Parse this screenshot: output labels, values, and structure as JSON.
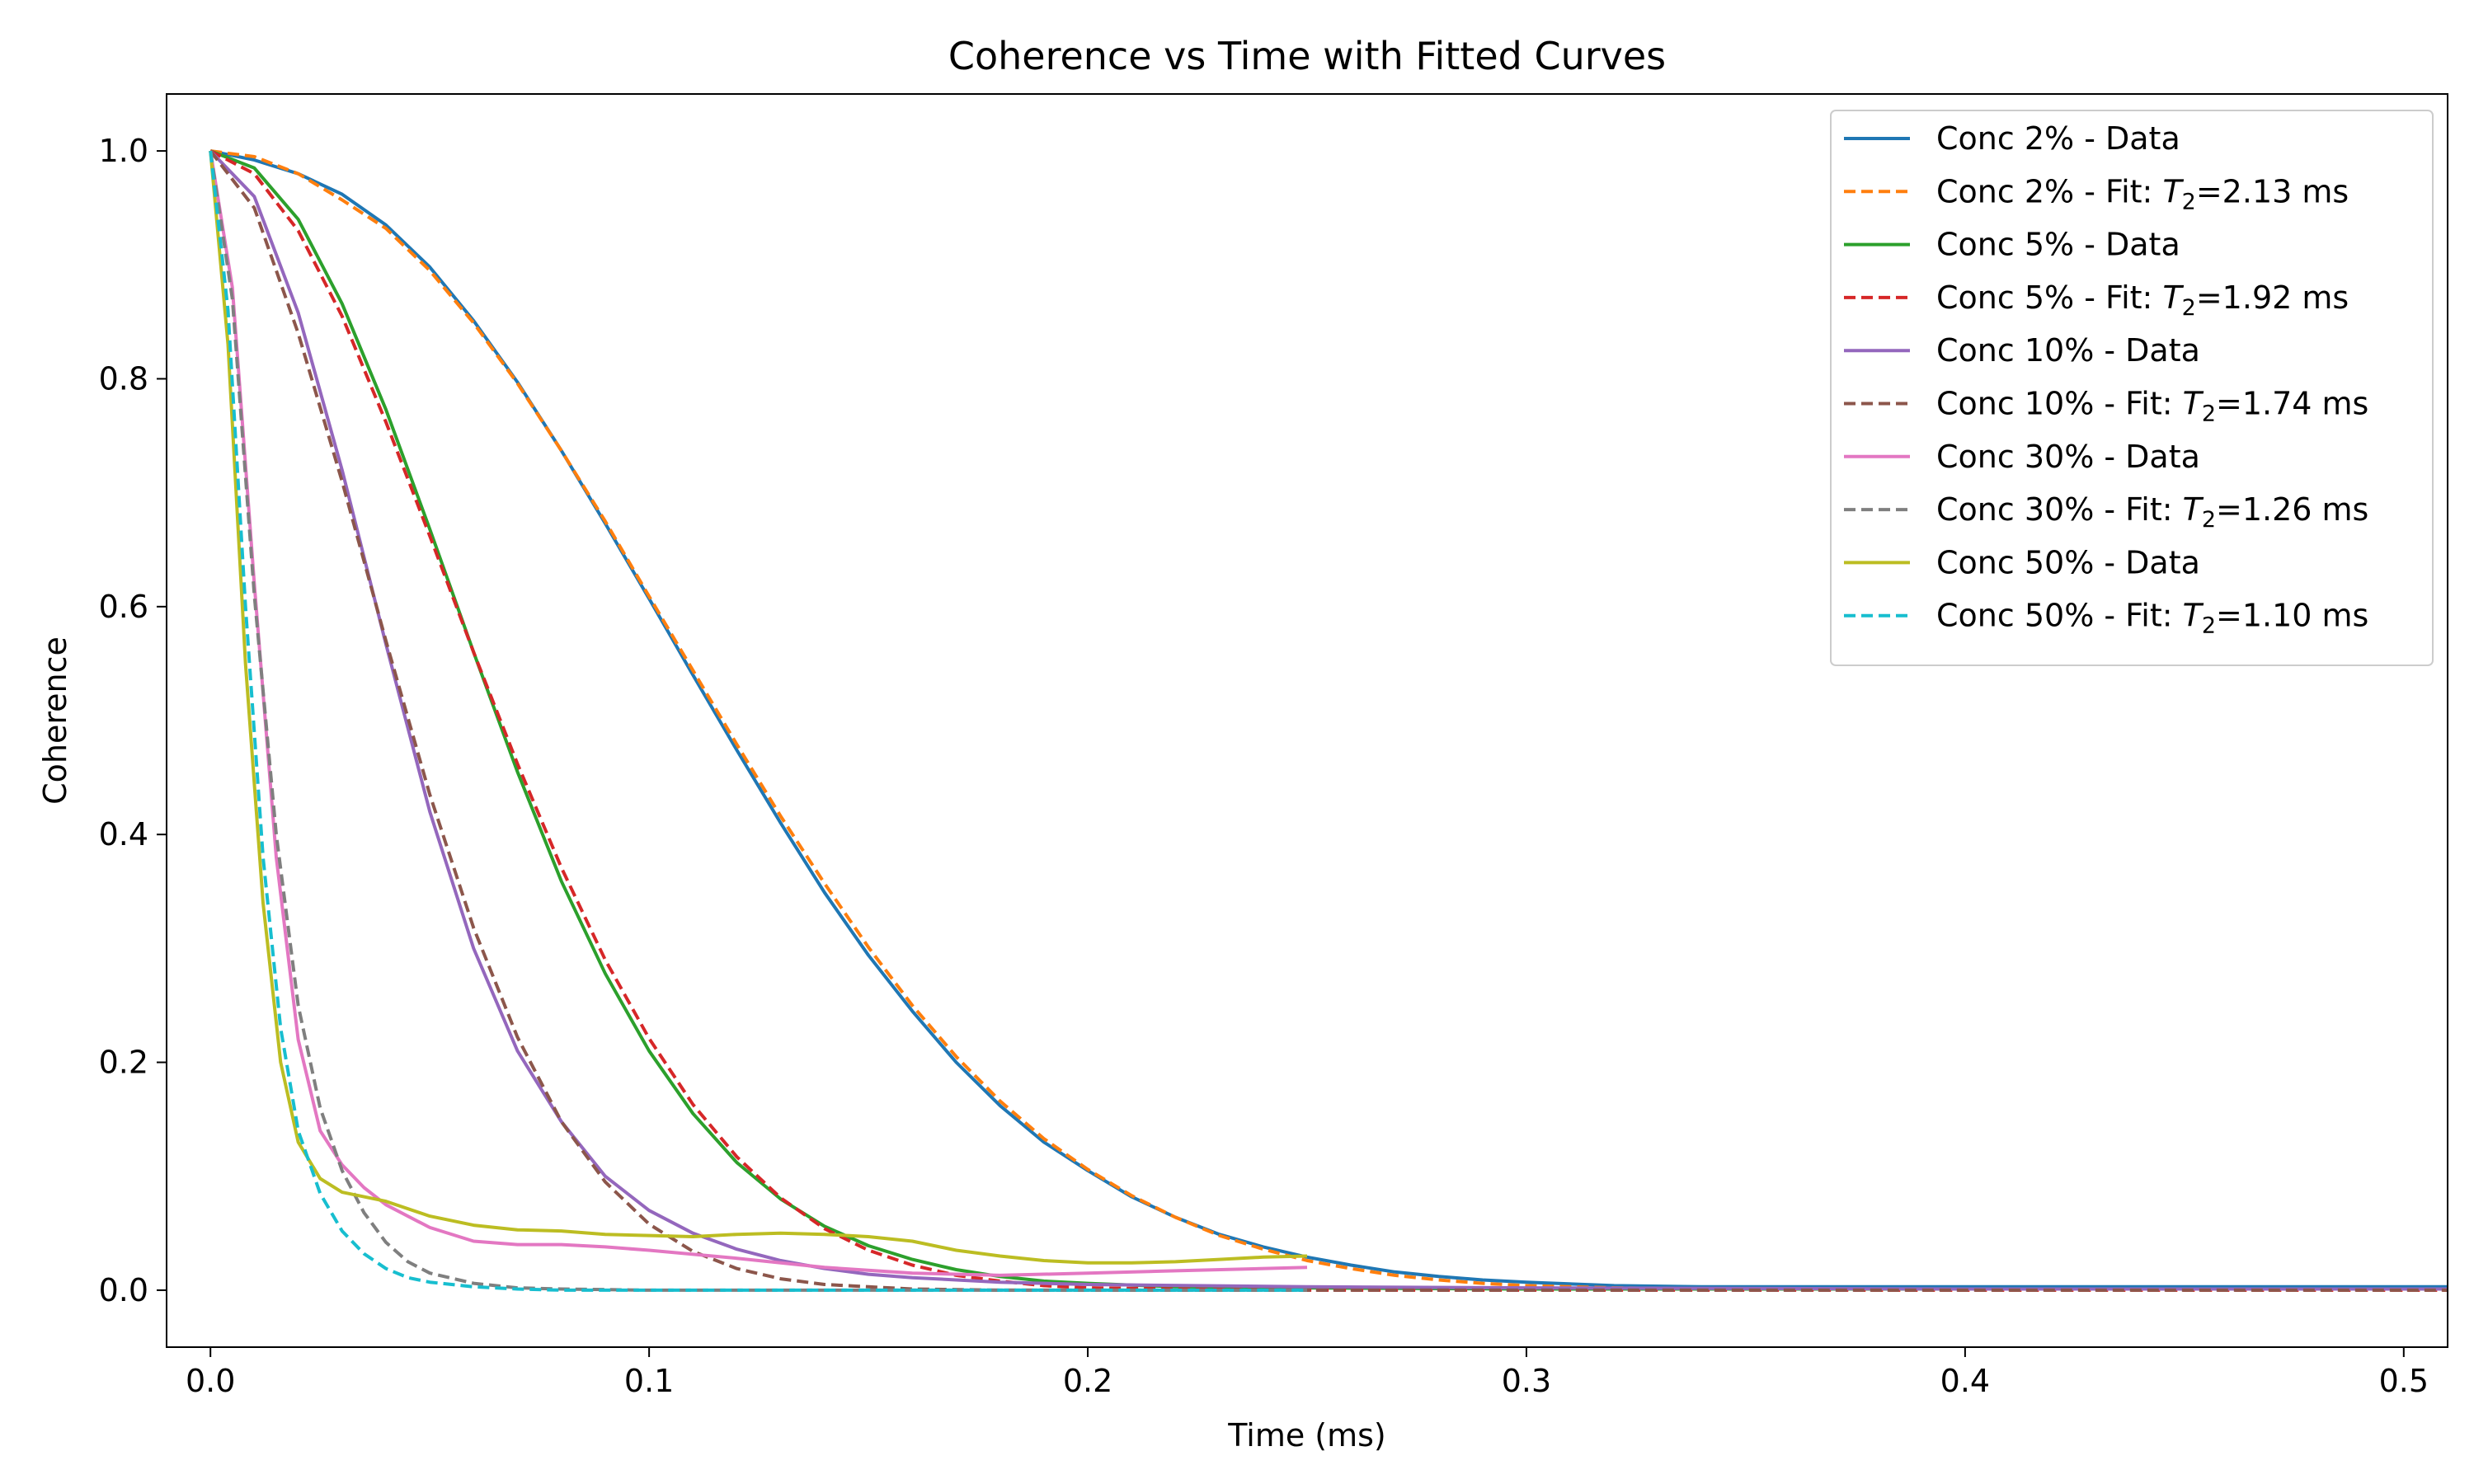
{
  "chart_data": {
    "type": "line",
    "title": "Coherence vs Time with Fitted Curves",
    "xlabel": "Time (ms)",
    "ylabel": "Coherence",
    "xlim": [
      -0.01,
      0.51
    ],
    "ylim": [
      -0.05,
      1.05
    ],
    "xticks": [
      0.0,
      0.1,
      0.2,
      0.3,
      0.4,
      0.5
    ],
    "xtick_labels": [
      "0.0",
      "0.1",
      "0.2",
      "0.3",
      "0.4",
      "0.5"
    ],
    "yticks": [
      0.0,
      0.2,
      0.4,
      0.6,
      0.8,
      1.0
    ],
    "ytick_labels": [
      "0.0",
      "0.2",
      "0.4",
      "0.6",
      "0.8",
      "1.0"
    ],
    "grid": false,
    "legend_position": "top-right",
    "series": [
      {
        "name": "Conc 2% - Data",
        "legend_parts": [
          "Conc 2% - Data"
        ],
        "color": "#1f77b4",
        "dash": false,
        "x": [
          0.0,
          0.01,
          0.02,
          0.03,
          0.04,
          0.05,
          0.06,
          0.07,
          0.08,
          0.09,
          0.1,
          0.11,
          0.12,
          0.13,
          0.14,
          0.15,
          0.16,
          0.17,
          0.18,
          0.19,
          0.2,
          0.21,
          0.22,
          0.23,
          0.24,
          0.25,
          0.26,
          0.27,
          0.28,
          0.29,
          0.3,
          0.32,
          0.34,
          0.36,
          0.38,
          0.4,
          0.45,
          0.51
        ],
        "y": [
          1.0,
          0.992,
          0.98,
          0.962,
          0.935,
          0.898,
          0.851,
          0.797,
          0.737,
          0.673,
          0.607,
          0.54,
          0.474,
          0.41,
          0.349,
          0.294,
          0.245,
          0.2,
          0.162,
          0.13,
          0.105,
          0.082,
          0.064,
          0.049,
          0.038,
          0.029,
          0.022,
          0.016,
          0.012,
          0.009,
          0.007,
          0.004,
          0.003,
          0.003,
          0.003,
          0.003,
          0.003,
          0.003
        ]
      },
      {
        "name": "Conc 2% - Fit: T2=2.13 ms",
        "legend_parts": [
          "Conc 2% - Fit: ",
          "T",
          "2",
          "=2.13 ms"
        ],
        "color": "#ff7f0e",
        "dash": true,
        "x": [
          0.0,
          0.01,
          0.02,
          0.03,
          0.04,
          0.05,
          0.06,
          0.07,
          0.08,
          0.09,
          0.1,
          0.11,
          0.12,
          0.13,
          0.14,
          0.15,
          0.16,
          0.17,
          0.18,
          0.19,
          0.2,
          0.21,
          0.22,
          0.23,
          0.24,
          0.25,
          0.26,
          0.27,
          0.28,
          0.29,
          0.3,
          0.32,
          0.34,
          0.36,
          0.38,
          0.4,
          0.45,
          0.51
        ],
        "y": [
          1.0,
          0.995,
          0.98,
          0.957,
          0.932,
          0.895,
          0.849,
          0.796,
          0.737,
          0.675,
          0.609,
          0.544,
          0.479,
          0.416,
          0.357,
          0.301,
          0.25,
          0.205,
          0.166,
          0.133,
          0.106,
          0.083,
          0.064,
          0.048,
          0.036,
          0.026,
          0.019,
          0.013,
          0.009,
          0.006,
          0.004,
          0.002,
          0.001,
          0.001,
          0.0,
          0.0,
          0.0,
          0.0
        ]
      },
      {
        "name": "Conc 5% - Data",
        "legend_parts": [
          "Conc 5% - Data"
        ],
        "color": "#2ca02c",
        "dash": false,
        "x": [
          0.0,
          0.01,
          0.02,
          0.03,
          0.04,
          0.05,
          0.06,
          0.07,
          0.08,
          0.09,
          0.1,
          0.11,
          0.12,
          0.13,
          0.14,
          0.15,
          0.16,
          0.17,
          0.18,
          0.19,
          0.2,
          0.22,
          0.25,
          0.3,
          0.4,
          0.51
        ],
        "y": [
          1.0,
          0.985,
          0.94,
          0.866,
          0.773,
          0.668,
          0.56,
          0.455,
          0.359,
          0.278,
          0.21,
          0.155,
          0.112,
          0.08,
          0.056,
          0.039,
          0.027,
          0.018,
          0.012,
          0.008,
          0.006,
          0.003,
          0.002,
          0.001,
          0.001,
          0.001
        ]
      },
      {
        "name": "Conc 5% - Fit: T2=1.92 ms",
        "legend_parts": [
          "Conc 5% - Fit: ",
          "T",
          "2",
          "=1.92 ms"
        ],
        "color": "#d62728",
        "dash": true,
        "x": [
          0.0,
          0.01,
          0.02,
          0.03,
          0.04,
          0.05,
          0.06,
          0.07,
          0.08,
          0.09,
          0.1,
          0.11,
          0.12,
          0.13,
          0.14,
          0.15,
          0.16,
          0.17,
          0.18,
          0.19,
          0.2,
          0.22,
          0.25,
          0.3,
          0.4,
          0.51
        ],
        "y": [
          1.0,
          0.98,
          0.93,
          0.855,
          0.762,
          0.662,
          0.56,
          0.462,
          0.371,
          0.29,
          0.221,
          0.163,
          0.117,
          0.081,
          0.054,
          0.035,
          0.022,
          0.013,
          0.008,
          0.004,
          0.002,
          0.001,
          0.0,
          0.0,
          0.0,
          0.0
        ]
      },
      {
        "name": "Conc 10% - Data",
        "legend_parts": [
          "Conc 10% - Data"
        ],
        "color": "#9467bd",
        "dash": false,
        "x": [
          0.0,
          0.01,
          0.02,
          0.03,
          0.04,
          0.05,
          0.06,
          0.07,
          0.08,
          0.09,
          0.1,
          0.11,
          0.12,
          0.13,
          0.14,
          0.15,
          0.16,
          0.18,
          0.2,
          0.25,
          0.3,
          0.4,
          0.51
        ],
        "y": [
          1.0,
          0.96,
          0.858,
          0.72,
          0.567,
          0.42,
          0.3,
          0.21,
          0.148,
          0.1,
          0.07,
          0.05,
          0.036,
          0.026,
          0.019,
          0.014,
          0.011,
          0.007,
          0.005,
          0.003,
          0.002,
          0.001,
          0.001
        ]
      },
      {
        "name": "Conc 10% - Fit: T2=1.74 ms",
        "legend_parts": [
          "Conc 10% - Fit: ",
          "T",
          "2",
          "=1.74 ms"
        ],
        "color": "#8c564b",
        "dash": true,
        "x": [
          0.0,
          0.01,
          0.02,
          0.03,
          0.04,
          0.05,
          0.06,
          0.07,
          0.08,
          0.09,
          0.1,
          0.11,
          0.12,
          0.13,
          0.14,
          0.15,
          0.16,
          0.18,
          0.2,
          0.25,
          0.3,
          0.4,
          0.51
        ],
        "y": [
          1.0,
          0.95,
          0.84,
          0.71,
          0.57,
          0.435,
          0.318,
          0.222,
          0.148,
          0.095,
          0.058,
          0.034,
          0.019,
          0.01,
          0.005,
          0.003,
          0.001,
          0.0,
          0.0,
          0.0,
          0.0,
          0.0,
          0.0
        ]
      },
      {
        "name": "Conc 30% - Data",
        "legend_parts": [
          "Conc 30% - Data"
        ],
        "color": "#e377c2",
        "dash": false,
        "x": [
          0.0,
          0.005,
          0.01,
          0.015,
          0.02,
          0.025,
          0.03,
          0.035,
          0.04,
          0.05,
          0.06,
          0.07,
          0.08,
          0.09,
          0.1,
          0.12,
          0.14,
          0.16,
          0.18,
          0.2,
          0.22,
          0.25
        ],
        "y": [
          1.0,
          0.88,
          0.62,
          0.38,
          0.22,
          0.14,
          0.11,
          0.09,
          0.075,
          0.055,
          0.043,
          0.04,
          0.04,
          0.038,
          0.035,
          0.028,
          0.02,
          0.015,
          0.013,
          0.015,
          0.017,
          0.02
        ]
      },
      {
        "name": "Conc 30% - Fit: T2=1.26 ms",
        "legend_parts": [
          "Conc 30% - Fit: ",
          "T",
          "2",
          "=1.26 ms"
        ],
        "color": "#7f7f7f",
        "dash": true,
        "x": [
          0.0,
          0.005,
          0.01,
          0.015,
          0.02,
          0.025,
          0.03,
          0.035,
          0.04,
          0.045,
          0.05,
          0.06,
          0.07,
          0.08,
          0.1,
          0.15,
          0.2,
          0.25
        ],
        "y": [
          1.0,
          0.87,
          0.61,
          0.4,
          0.25,
          0.16,
          0.105,
          0.068,
          0.042,
          0.025,
          0.015,
          0.006,
          0.002,
          0.001,
          0.0,
          0.0,
          0.0,
          0.0
        ]
      },
      {
        "name": "Conc 50% - Data",
        "legend_parts": [
          "Conc 50% - Data"
        ],
        "color": "#bcbd22",
        "dash": false,
        "x": [
          0.0,
          0.004,
          0.008,
          0.012,
          0.016,
          0.02,
          0.025,
          0.03,
          0.04,
          0.05,
          0.06,
          0.07,
          0.08,
          0.09,
          0.1,
          0.11,
          0.12,
          0.13,
          0.14,
          0.15,
          0.16,
          0.17,
          0.18,
          0.19,
          0.2,
          0.21,
          0.22,
          0.23,
          0.24,
          0.25
        ],
        "y": [
          1.0,
          0.83,
          0.55,
          0.34,
          0.2,
          0.13,
          0.098,
          0.086,
          0.078,
          0.065,
          0.057,
          0.053,
          0.052,
          0.049,
          0.048,
          0.047,
          0.049,
          0.05,
          0.049,
          0.047,
          0.043,
          0.035,
          0.03,
          0.026,
          0.024,
          0.024,
          0.025,
          0.027,
          0.029,
          0.03
        ]
      },
      {
        "name": "Conc 50% - Fit: T2=1.10 ms",
        "legend_parts": [
          "Conc 50% - Fit: ",
          "T",
          "2",
          "=1.10 ms"
        ],
        "color": "#17becf",
        "dash": true,
        "x": [
          0.0,
          0.004,
          0.008,
          0.012,
          0.016,
          0.02,
          0.025,
          0.03,
          0.035,
          0.04,
          0.045,
          0.05,
          0.06,
          0.07,
          0.08,
          0.1,
          0.15,
          0.2,
          0.25
        ],
        "y": [
          1.0,
          0.86,
          0.6,
          0.38,
          0.23,
          0.14,
          0.085,
          0.052,
          0.032,
          0.019,
          0.011,
          0.007,
          0.003,
          0.001,
          0.0,
          0.0,
          0.0,
          0.0,
          0.0
        ]
      }
    ]
  }
}
